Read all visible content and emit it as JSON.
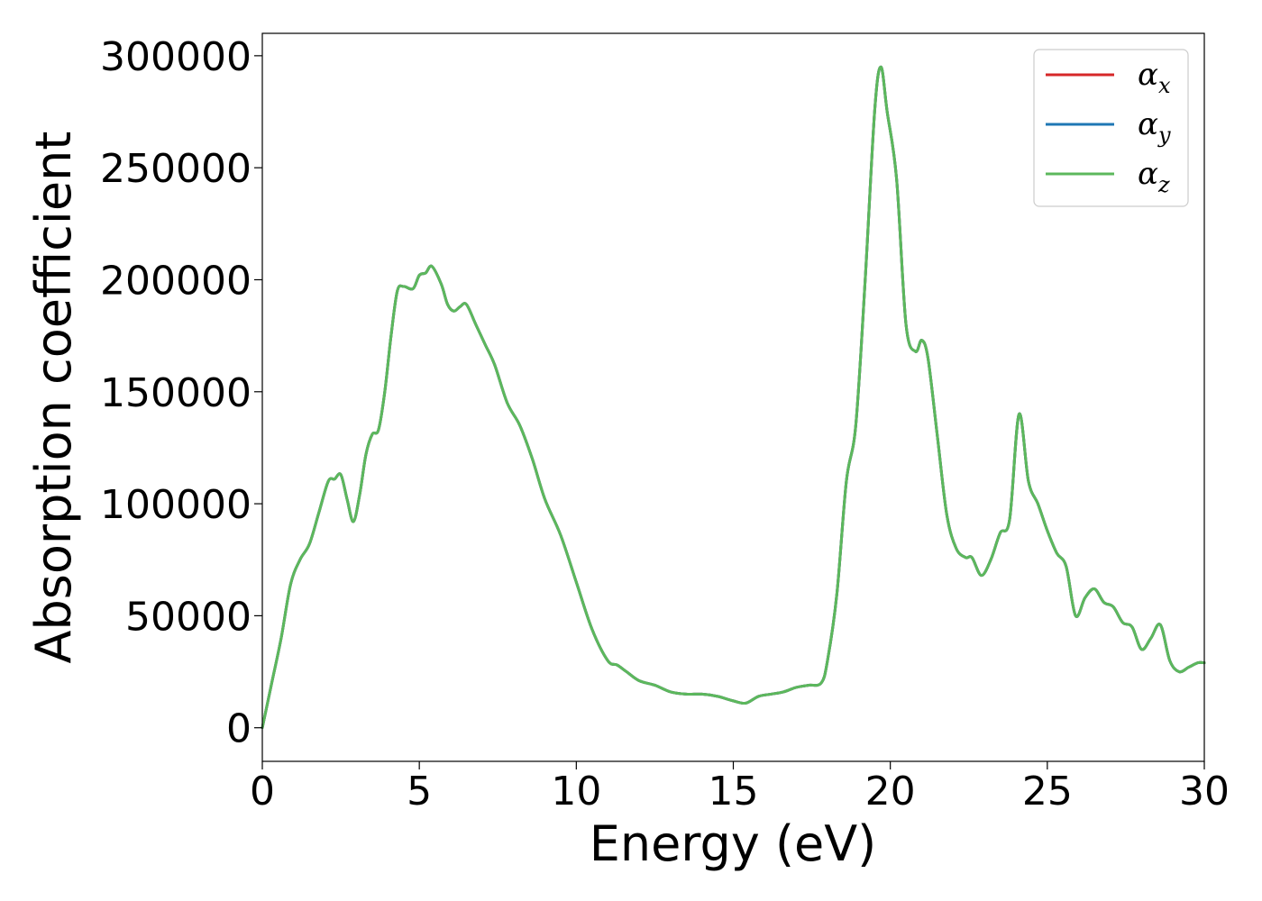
{
  "chart_data": {
    "type": "line",
    "xlabel": "Energy (eV)",
    "ylabel": "Absorption coefficient",
    "xlim": [
      0,
      30
    ],
    "ylim": [
      -15000,
      310000
    ],
    "xticks": [
      0,
      5,
      10,
      15,
      20,
      25,
      30
    ],
    "yticks": [
      0,
      50000,
      100000,
      150000,
      200000,
      250000,
      300000
    ],
    "grid": false,
    "legend_position": "top-right",
    "x": [
      0,
      0.3,
      0.6,
      0.9,
      1.2,
      1.5,
      1.8,
      2.1,
      2.3,
      2.5,
      2.7,
      2.9,
      3.1,
      3.3,
      3.5,
      3.7,
      3.9,
      4.1,
      4.3,
      4.5,
      4.8,
      5.0,
      5.2,
      5.4,
      5.7,
      5.9,
      6.1,
      6.3,
      6.5,
      6.8,
      7.1,
      7.4,
      7.8,
      8.2,
      8.6,
      9.0,
      9.5,
      10.0,
      10.5,
      11.0,
      11.3,
      11.6,
      12.0,
      12.5,
      13.0,
      13.5,
      14.0,
      14.5,
      15.0,
      15.4,
      15.8,
      16.2,
      16.6,
      17.0,
      17.4,
      17.8,
      18.0,
      18.3,
      18.6,
      18.9,
      19.2,
      19.5,
      19.7,
      19.9,
      20.2,
      20.5,
      20.8,
      21.0,
      21.2,
      21.5,
      21.8,
      22.1,
      22.4,
      22.6,
      22.9,
      23.2,
      23.5,
      23.8,
      24.1,
      24.4,
      24.7,
      25.0,
      25.3,
      25.6,
      25.9,
      26.2,
      26.5,
      26.8,
      27.1,
      27.4,
      27.7,
      28.0,
      28.3,
      28.6,
      28.9,
      29.2,
      29.5,
      29.8,
      30.0
    ],
    "series": [
      {
        "name": "α_x",
        "label_base": "α",
        "label_sub": "x",
        "color": "#d62728",
        "y": [
          0,
          20000,
          40000,
          64000,
          75000,
          82000,
          96000,
          110000,
          111000,
          113000,
          102000,
          92000,
          104000,
          122000,
          131000,
          133000,
          150000,
          175000,
          195000,
          197000,
          196000,
          202000,
          203000,
          206000,
          198000,
          189000,
          186000,
          188000,
          189000,
          180000,
          171000,
          162000,
          145000,
          135000,
          120000,
          102000,
          86000,
          65000,
          44000,
          30000,
          28000,
          25000,
          21000,
          19000,
          16000,
          15000,
          15000,
          14000,
          12000,
          11000,
          14000,
          15000,
          16000,
          18000,
          19000,
          20000,
          30000,
          60000,
          110000,
          135000,
          200000,
          275000,
          295000,
          275000,
          245000,
          180000,
          168000,
          173000,
          165000,
          130000,
          95000,
          80000,
          76000,
          76000,
          68000,
          75000,
          87000,
          93000,
          140000,
          110000,
          100000,
          88000,
          78000,
          72000,
          50000,
          58000,
          62000,
          56000,
          54000,
          47000,
          45000,
          35000,
          40000,
          46000,
          30000,
          25000,
          27000,
          29000,
          29000
        ]
      },
      {
        "name": "α_y",
        "label_base": "α",
        "label_sub": "y",
        "color": "#1f77b4",
        "y": [
          0,
          20000,
          40000,
          64000,
          75000,
          82000,
          96000,
          110000,
          111000,
          113000,
          102000,
          92000,
          104000,
          122000,
          131000,
          133000,
          150000,
          175000,
          195000,
          197000,
          196000,
          202000,
          203000,
          206000,
          198000,
          189000,
          186000,
          188000,
          189000,
          180000,
          171000,
          162000,
          145000,
          135000,
          120000,
          102000,
          86000,
          65000,
          44000,
          30000,
          28000,
          25000,
          21000,
          19000,
          16000,
          15000,
          15000,
          14000,
          12000,
          11000,
          14000,
          15000,
          16000,
          18000,
          19000,
          20000,
          30000,
          60000,
          110000,
          135000,
          200000,
          275000,
          295000,
          275000,
          245000,
          180000,
          168000,
          173000,
          165000,
          130000,
          95000,
          80000,
          76000,
          76000,
          68000,
          75000,
          87000,
          93000,
          140000,
          110000,
          100000,
          88000,
          78000,
          72000,
          50000,
          58000,
          62000,
          56000,
          54000,
          47000,
          45000,
          35000,
          40000,
          46000,
          30000,
          25000,
          27000,
          29000,
          29000
        ]
      },
      {
        "name": "α_z",
        "label_base": "α",
        "label_sub": "z",
        "color": "#5cb85c",
        "y": [
          0,
          20000,
          40000,
          64000,
          75000,
          82000,
          96000,
          110000,
          111000,
          113000,
          102000,
          92000,
          104000,
          122000,
          131000,
          133000,
          150000,
          175000,
          195000,
          197000,
          196000,
          202000,
          203000,
          206000,
          198000,
          189000,
          186000,
          188000,
          189000,
          180000,
          171000,
          162000,
          145000,
          135000,
          120000,
          102000,
          86000,
          65000,
          44000,
          30000,
          28000,
          25000,
          21000,
          19000,
          16000,
          15000,
          15000,
          14000,
          12000,
          11000,
          14000,
          15000,
          16000,
          18000,
          19000,
          20000,
          30000,
          60000,
          110000,
          135000,
          200000,
          275000,
          295000,
          275000,
          245000,
          180000,
          168000,
          173000,
          165000,
          130000,
          95000,
          80000,
          76000,
          76000,
          68000,
          75000,
          87000,
          93000,
          140000,
          110000,
          100000,
          88000,
          78000,
          72000,
          50000,
          58000,
          62000,
          56000,
          54000,
          47000,
          45000,
          35000,
          40000,
          46000,
          30000,
          25000,
          27000,
          29000,
          29000
        ]
      }
    ]
  }
}
